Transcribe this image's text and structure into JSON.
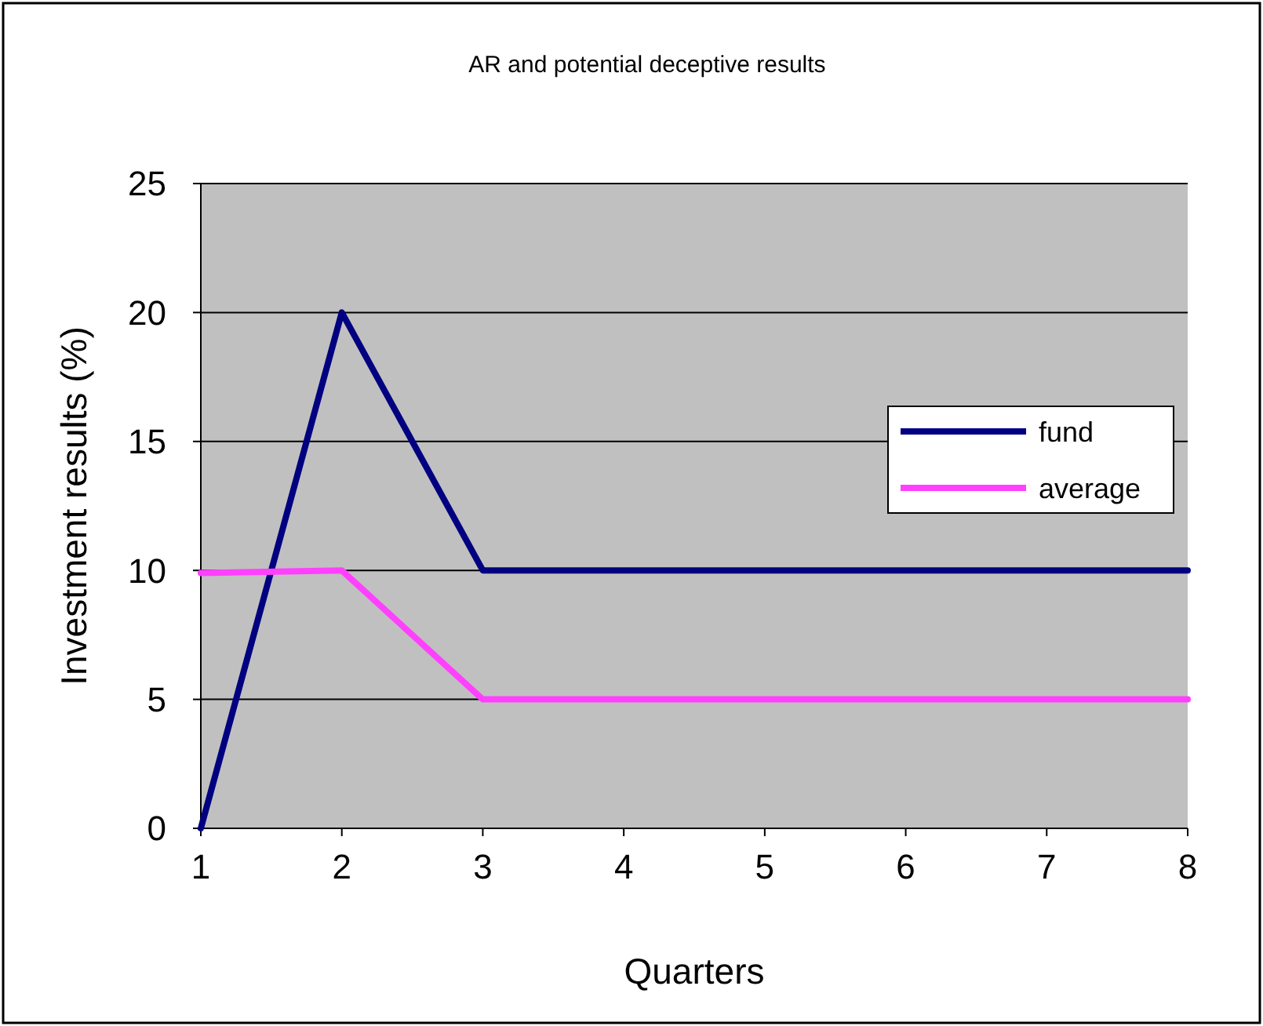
{
  "chart_data": {
    "type": "line",
    "title": "AR and potential deceptive results",
    "xlabel": "Quarters",
    "ylabel": "Investment results (%)",
    "x": [
      1,
      2,
      3,
      4,
      5,
      6,
      7,
      8
    ],
    "series": [
      {
        "name": "fund",
        "color": "#000080",
        "values": [
          0,
          20,
          10,
          10,
          10,
          10,
          10,
          10
        ]
      },
      {
        "name": "average",
        "color": "#ff40ff",
        "values": [
          9.9,
          10,
          5,
          5,
          5,
          5,
          5,
          5
        ]
      }
    ],
    "xlim": [
      1,
      8
    ],
    "xticks": [
      1,
      2,
      3,
      4,
      5,
      6,
      7,
      8
    ],
    "ylim": [
      0,
      25
    ],
    "yticks": [
      0,
      5,
      10,
      15,
      20,
      25
    ],
    "grid": "y",
    "legend": "right",
    "marker": "none",
    "line_style": "solid"
  }
}
